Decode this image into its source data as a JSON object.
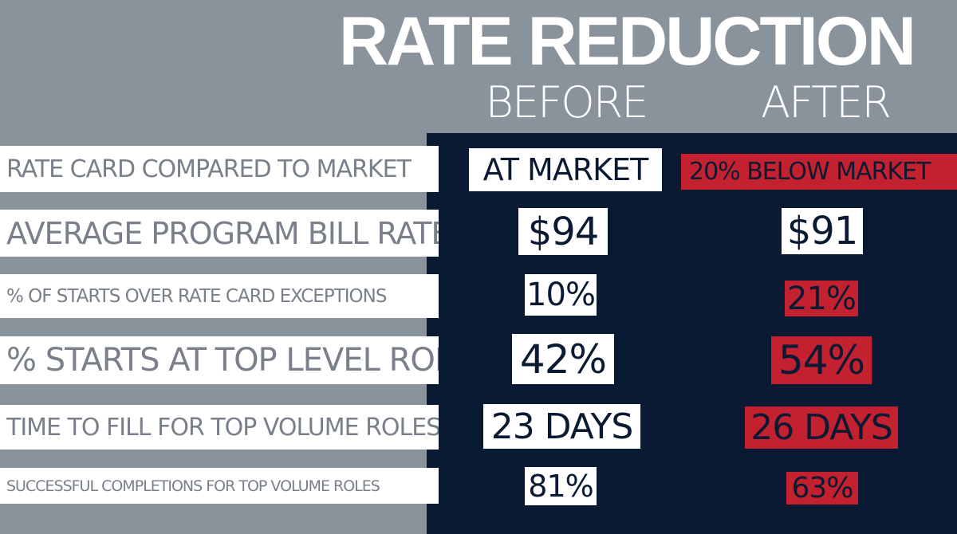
{
  "title": "RATE REDUCTION",
  "columns": {
    "before": "BEFORE",
    "after": "AFTER"
  },
  "rows": [
    {
      "label": "RATE CARD COMPARED TO MARKET",
      "before": "AT MARKET",
      "after": "20% BELOW MARKET"
    },
    {
      "label": "AVERAGE PROGRAM BILL RATE",
      "before": "$94",
      "after": "$91"
    },
    {
      "label": "% OF STARTS OVER RATE CARD EXCEPTIONS",
      "before": "10%",
      "after": "21%"
    },
    {
      "label": "% STARTS AT TOP LEVEL ROLE",
      "before": "42%",
      "after": "54%"
    },
    {
      "label": "TIME TO FILL FOR TOP VOLUME ROLES",
      "before": "23 DAYS",
      "after": "26 DAYS"
    },
    {
      "label": "SUCCESSFUL COMPLETIONS FOR TOP VOLUME ROLES",
      "before": "81%",
      "after": "63%"
    }
  ],
  "colors": {
    "background": "#8a939c",
    "panel": "#0b1a33",
    "highlight": "#c3212f",
    "label_text": "#7a8089"
  }
}
